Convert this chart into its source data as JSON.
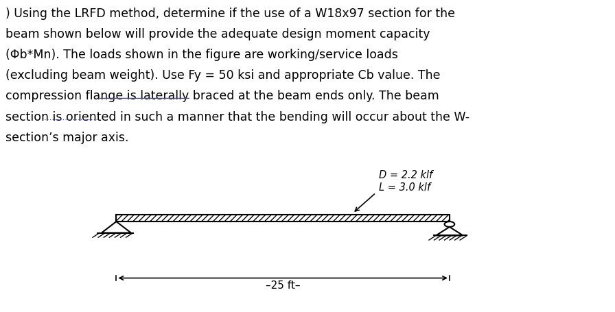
{
  "diagram_bg": "#c8c8c8",
  "load_label_D": "D = 2.2 klf",
  "load_label_L": "L = 3.0 klf",
  "span_text": "25 ft",
  "fig_width": 8.96,
  "fig_height": 4.56,
  "text_fontsize": 12.5,
  "diagram_label_fontsize": 10.5,
  "text_lines": [
    ") Using the LRFD method, determine if the use of a W18x97 section for the",
    "beam shown below will provide the adequate design moment capacity",
    "(Φb*Mn). The loads shown in the figure are working/service loads",
    "(excluding beam weight). Use Fy = 50 ksi and appropriate Cb value. The",
    "compression flange is laterally braced at the beam ends only. The beam",
    "section is oriented in such a manner that the bending will occur about the W-",
    "section’s major axis."
  ],
  "underline_1_line": 4,
  "underline_1_word_start": "is laterally braced",
  "underline_2_line": 5,
  "underline_2_word_start": "is oriented"
}
